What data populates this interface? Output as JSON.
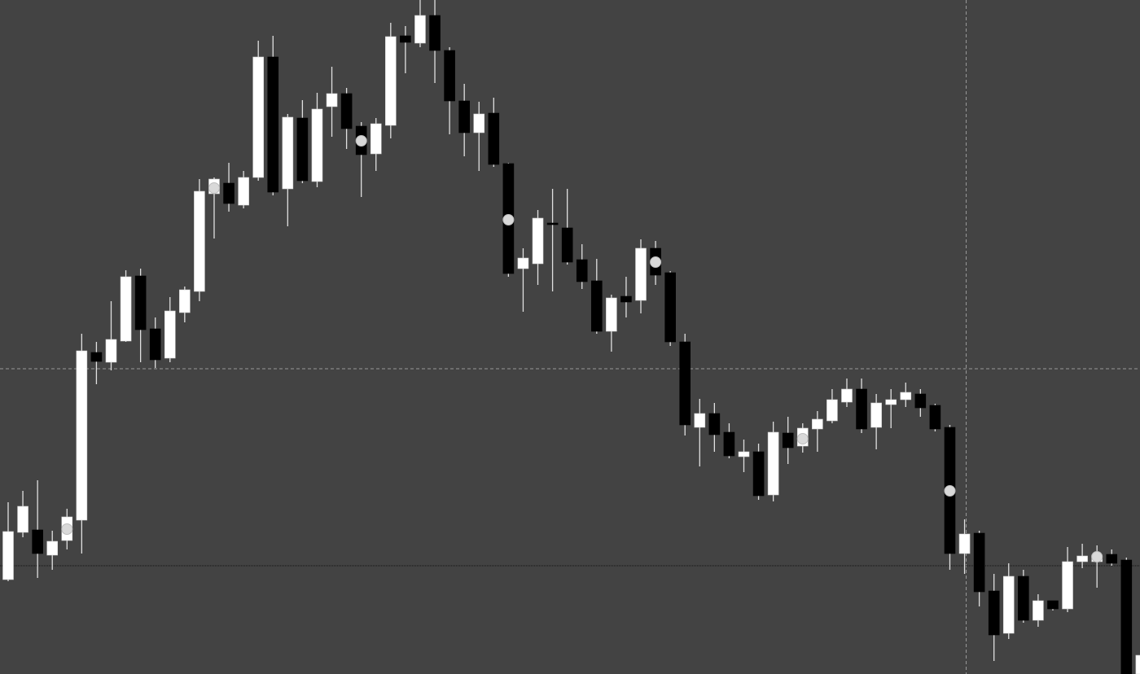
{
  "chart_data": {
    "type": "candlestick",
    "ylim": [
      0,
      828
    ],
    "background": "#434343",
    "up_color": "#ffffff",
    "down_color": "#000000",
    "wick_color": "#e0e0e0",
    "marker_color": "#d9d9d9",
    "open": [
      116,
      174,
      177,
      146,
      164,
      189,
      395,
      383,
      409,
      489,
      424,
      388,
      444,
      470,
      590,
      603,
      576,
      610,
      758,
      596,
      683,
      605,
      697,
      713,
      673,
      639,
      674,
      784,
      775,
      809,
      766,
      704,
      665,
      689,
      627,
      498,
      504,
      554,
      548,
      509,
      483,
      421,
      464,
      459,
      523,
      493,
      408,
      303,
      320,
      297,
      267,
      273,
      220,
      296,
      280,
      301,
      311,
      334,
      350,
      303,
      331,
      337,
      344,
      330,
      303,
      148,
      173,
      102,
      50,
      120,
      66,
      90,
      80,
      138,
      138,
      147,
      140,
      0
    ],
    "high": [
      211,
      225,
      238,
      176,
      203,
      418,
      408,
      458,
      496,
      498,
      438,
      463,
      476,
      608,
      610,
      628,
      618,
      778,
      784,
      688,
      705,
      714,
      746,
      720,
      678,
      683,
      800,
      796,
      828,
      828,
      770,
      725,
      703,
      708,
      628,
      523,
      570,
      596,
      596,
      528,
      510,
      466,
      488,
      534,
      532,
      495,
      418,
      338,
      333,
      308,
      288,
      283,
      310,
      316,
      308,
      323,
      350,
      363,
      363,
      344,
      350,
      358,
      350,
      332,
      306,
      190,
      176,
      123,
      136,
      128,
      98,
      90,
      156,
      160,
      158,
      153,
      143,
      33
    ],
    "low": [
      114,
      168,
      118,
      128,
      153,
      148,
      356,
      373,
      408,
      383,
      376,
      383,
      432,
      458,
      535,
      568,
      572,
      606,
      588,
      550,
      603,
      598,
      660,
      645,
      586,
      618,
      658,
      738,
      770,
      726,
      663,
      636,
      618,
      623,
      488,
      445,
      478,
      470,
      503,
      473,
      418,
      396,
      438,
      443,
      478,
      403,
      293,
      255,
      273,
      265,
      248,
      214,
      212,
      258,
      272,
      273,
      308,
      328,
      296,
      276,
      302,
      328,
      316,
      298,
      128,
      123,
      83,
      16,
      43,
      63,
      58,
      78,
      76,
      130,
      106,
      133,
      0,
      0
    ],
    "close": [
      175,
      206,
      148,
      163,
      193,
      397,
      384,
      411,
      488,
      423,
      386,
      446,
      472,
      593,
      608,
      578,
      610,
      758,
      592,
      684,
      606,
      694,
      713,
      670,
      638,
      676,
      783,
      776,
      809,
      766,
      704,
      665,
      688,
      626,
      492,
      511,
      560,
      552,
      506,
      482,
      421,
      462,
      457,
      523,
      490,
      408,
      306,
      320,
      294,
      268,
      273,
      219,
      297,
      278,
      302,
      313,
      337,
      350,
      301,
      333,
      337,
      346,
      327,
      301,
      148,
      172,
      101,
      48,
      120,
      66,
      90,
      80,
      138,
      145,
      146,
      136,
      0,
      23
    ],
    "markers": [
      null,
      null,
      null,
      null,
      178,
      null,
      null,
      null,
      null,
      null,
      null,
      null,
      null,
      null,
      597,
      null,
      null,
      null,
      null,
      null,
      null,
      null,
      null,
      null,
      655,
      null,
      null,
      null,
      null,
      null,
      null,
      null,
      null,
      null,
      558,
      null,
      null,
      null,
      null,
      null,
      null,
      null,
      null,
      null,
      506,
      null,
      null,
      null,
      null,
      null,
      null,
      null,
      null,
      null,
      289,
      null,
      null,
      null,
      null,
      null,
      null,
      null,
      null,
      null,
      225,
      null,
      null,
      null,
      null,
      null,
      null,
      null,
      null,
      null,
      144,
      null,
      null,
      null
    ],
    "crosshair": {
      "x_index": 65,
      "y": 375
    },
    "price_line": 133
  }
}
